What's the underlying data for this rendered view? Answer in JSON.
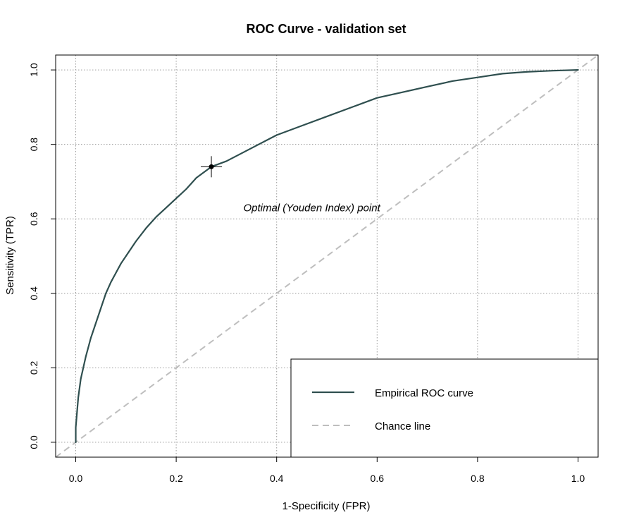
{
  "chart_data": {
    "type": "line",
    "title": "ROC Curve - validation set",
    "xlabel": "1-Specificity (FPR)",
    "ylabel": "Sensitivity (TPR)",
    "xlim": [
      -0.04,
      1.04
    ],
    "ylim": [
      -0.04,
      1.04
    ],
    "xticks": [
      "0.0",
      "0.2",
      "0.4",
      "0.6",
      "0.8",
      "1.0"
    ],
    "yticks": [
      "0.0",
      "0.2",
      "0.4",
      "0.6",
      "0.8",
      "1.0"
    ],
    "grid": true,
    "legend_position": "bottom-right",
    "colors": {
      "roc": "#2F4F4F",
      "chance": "#BEBEBE",
      "grid": "#9A9A9A"
    },
    "series": [
      {
        "name": "Empirical ROC curve",
        "style": "solid",
        "x": [
          0.0,
          0.0,
          0.005,
          0.01,
          0.02,
          0.03,
          0.04,
          0.05,
          0.06,
          0.07,
          0.08,
          0.09,
          0.1,
          0.12,
          0.14,
          0.16,
          0.18,
          0.2,
          0.22,
          0.24,
          0.26,
          0.27,
          0.3,
          0.35,
          0.4,
          0.45,
          0.5,
          0.55,
          0.6,
          0.65,
          0.7,
          0.75,
          0.8,
          0.85,
          0.9,
          0.95,
          1.0
        ],
        "y": [
          0.0,
          0.04,
          0.12,
          0.17,
          0.23,
          0.28,
          0.32,
          0.36,
          0.4,
          0.43,
          0.455,
          0.48,
          0.5,
          0.54,
          0.575,
          0.605,
          0.63,
          0.655,
          0.68,
          0.71,
          0.73,
          0.74,
          0.755,
          0.79,
          0.825,
          0.85,
          0.875,
          0.9,
          0.925,
          0.94,
          0.955,
          0.97,
          0.98,
          0.99,
          0.995,
          0.998,
          1.0
        ]
      },
      {
        "name": "Chance line",
        "style": "dashed",
        "x": [
          -0.04,
          1.04
        ],
        "y": [
          -0.04,
          1.04
        ]
      }
    ],
    "annotations": [
      {
        "text": "Optimal (Youden Index) point",
        "x": 0.27,
        "y": 0.74
      }
    ]
  }
}
